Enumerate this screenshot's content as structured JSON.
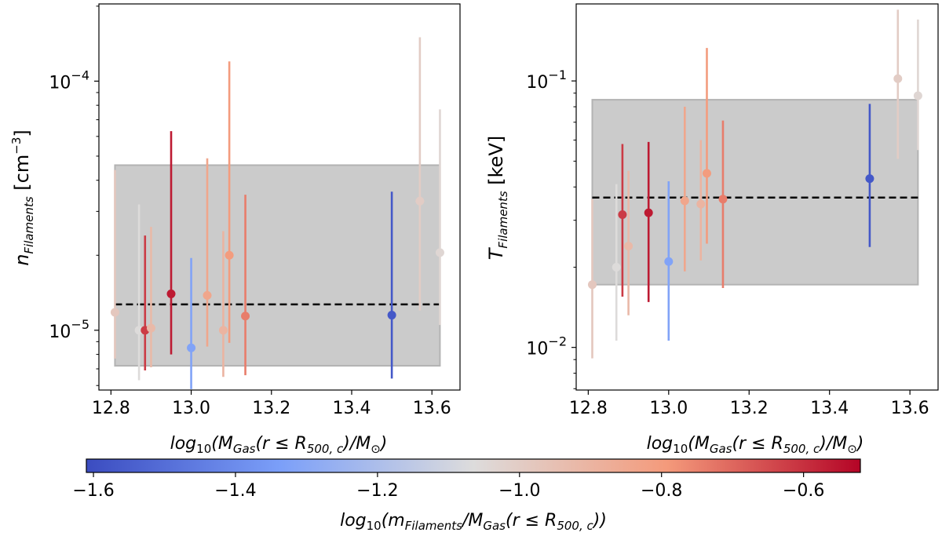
{
  "chart_data": [
    {
      "type": "scatter",
      "panel": "left",
      "ylabel": "n_Filaments [cm^-3]",
      "xlabel": "log10(M_Gas(r ≤ R_500,c)/M_⊙)",
      "xlim": [
        12.77,
        13.67
      ],
      "ylim_log10": [
        -5.24,
        -3.69
      ],
      "yscale": "log",
      "xticks": [
        "12.8",
        "13.0",
        "13.2",
        "13.4",
        "13.6"
      ],
      "yticks": [
        {
          "base": "10",
          "exp": "−4"
        },
        {
          "base": "10",
          "exp": "−5"
        }
      ],
      "band": {
        "x0": 12.81,
        "x1": 13.62,
        "y_low": 7.2e-06,
        "y_high": 4.6e-05
      },
      "median": 1.27e-05,
      "points": [
        {
          "x": 12.81,
          "y": 1.18e-05,
          "lo": 7.7e-06,
          "hi": 4.4e-05,
          "c": -0.98
        },
        {
          "x": 12.87,
          "y": 1e-05,
          "lo": 6.3e-06,
          "hi": 3.2e-05,
          "c": -1.06
        },
        {
          "x": 12.885,
          "y": 1e-05,
          "lo": 6.9e-06,
          "hi": 2.4e-05,
          "c": -0.62
        },
        {
          "x": 12.9,
          "y": 1.02e-05,
          "lo": 7.1e-06,
          "hi": 2.6e-05,
          "c": -0.92
        },
        {
          "x": 12.95,
          "y": 1.4e-05,
          "lo": 8e-06,
          "hi": 6.3e-05,
          "c": -0.56
        },
        {
          "x": 13.0,
          "y": 8.5e-06,
          "lo": 5.8e-06,
          "hi": 1.95e-05,
          "c": -1.32
        },
        {
          "x": 13.04,
          "y": 1.38e-05,
          "lo": 8.6e-06,
          "hi": 4.9e-05,
          "c": -0.84
        },
        {
          "x": 13.08,
          "y": 1e-05,
          "lo": 6.5e-06,
          "hi": 2.5e-05,
          "c": -0.9
        },
        {
          "x": 13.095,
          "y": 2e-05,
          "lo": 8.9e-06,
          "hi": 0.00012,
          "c": -0.8
        },
        {
          "x": 13.135,
          "y": 1.14e-05,
          "lo": 6.6e-06,
          "hi": 3.5e-05,
          "c": -0.74
        },
        {
          "x": 13.5,
          "y": 1.15e-05,
          "lo": 6.4e-06,
          "hi": 3.6e-05,
          "c": -1.57
        },
        {
          "x": 13.57,
          "y": 3.3e-05,
          "lo": 1.2e-05,
          "hi": 0.00015,
          "c": -1.0
        },
        {
          "x": 13.62,
          "y": 2.05e-05,
          "lo": 1.05e-05,
          "hi": 7.7e-05,
          "c": -1.04
        }
      ]
    },
    {
      "type": "scatter",
      "panel": "right",
      "ylabel": "T_Filaments [keV]",
      "xlabel": "log10(M_Gas(r ≤ R_500,c)/M_⊙)",
      "xlim": [
        12.77,
        13.67
      ],
      "ylim_log10": [
        -2.16,
        -0.711
      ],
      "yscale": "log",
      "xticks": [
        "12.8",
        "13.0",
        "13.2",
        "13.4",
        "13.6"
      ],
      "yticks": [
        {
          "base": "10",
          "exp": "−1"
        },
        {
          "base": "10",
          "exp": "−2"
        }
      ],
      "band": {
        "x0": 12.81,
        "x1": 13.62,
        "y_low": 0.0172,
        "y_high": 0.085
      },
      "median": 0.0365,
      "points": [
        {
          "x": 12.81,
          "y": 0.0172,
          "lo": 0.0091,
          "hi": 0.036,
          "c": -0.98
        },
        {
          "x": 12.87,
          "y": 0.02,
          "lo": 0.0106,
          "hi": 0.041,
          "c": -1.06
        },
        {
          "x": 12.885,
          "y": 0.0315,
          "lo": 0.0155,
          "hi": 0.058,
          "c": -0.62
        },
        {
          "x": 12.9,
          "y": 0.024,
          "lo": 0.0132,
          "hi": 0.046,
          "c": -0.92
        },
        {
          "x": 12.95,
          "y": 0.032,
          "lo": 0.0148,
          "hi": 0.059,
          "c": -0.56
        },
        {
          "x": 13.0,
          "y": 0.021,
          "lo": 0.0106,
          "hi": 0.042,
          "c": -1.32
        },
        {
          "x": 13.04,
          "y": 0.0355,
          "lo": 0.0193,
          "hi": 0.08,
          "c": -0.84
        },
        {
          "x": 13.08,
          "y": 0.0345,
          "lo": 0.0212,
          "hi": 0.06,
          "c": -0.9
        },
        {
          "x": 13.095,
          "y": 0.045,
          "lo": 0.0245,
          "hi": 0.133,
          "c": -0.8
        },
        {
          "x": 13.135,
          "y": 0.036,
          "lo": 0.0167,
          "hi": 0.071,
          "c": -0.74
        },
        {
          "x": 13.5,
          "y": 0.043,
          "lo": 0.0238,
          "hi": 0.082,
          "c": -1.57
        },
        {
          "x": 13.57,
          "y": 0.102,
          "lo": 0.051,
          "hi": 0.185,
          "c": -1.0
        },
        {
          "x": 13.62,
          "y": 0.088,
          "lo": 0.055,
          "hi": 0.17,
          "c": -1.04
        }
      ]
    }
  ],
  "colorbar": {
    "label": "log10(m_Filaments/M_Gas(r ≤ R_500,c))",
    "min": -1.61,
    "max": -0.52,
    "ticks": [
      "−1.6",
      "−1.4",
      "−1.2",
      "−1.0",
      "−0.8",
      "−0.6"
    ],
    "tick_values": [
      -1.6,
      -1.4,
      -1.2,
      -1.0,
      -0.8,
      -0.6
    ],
    "colors": [
      "#3b4cc0",
      "#dddcdc",
      "#b40426"
    ]
  },
  "labels": {
    "left_ylabel_main": "n",
    "left_ylabel_sub": "Filaments",
    "left_ylabel_unit": " [cm",
    "left_ylabel_exp": "−3",
    "left_ylabel_close": "]",
    "right_ylabel_main": "T",
    "right_ylabel_sub": "Filaments",
    "right_ylabel_unit": " [keV]",
    "xlabel_log": "log",
    "xlabel_10": "10",
    "xlabel_open": "(M",
    "xlabel_gas": "Gas",
    "xlabel_mid": "(r ≤ R",
    "xlabel_r500": "500, c",
    "xlabel_close": ")/M",
    "xlabel_sun": "⊙",
    "xlabel_end": ")",
    "cbar_log": "log",
    "cbar_10": "10",
    "cbar_open": "(m",
    "cbar_fil": "Filaments",
    "cbar_mid": "/M",
    "cbar_gas": "Gas",
    "cbar_r": "(r ≤ R",
    "cbar_r500": "500, c",
    "cbar_end": "))"
  }
}
